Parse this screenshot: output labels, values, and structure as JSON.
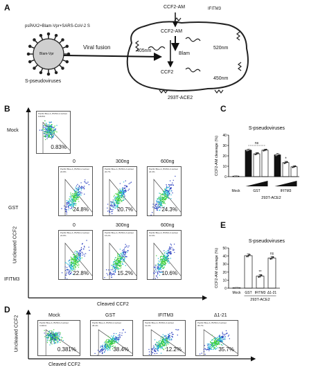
{
  "panels": {
    "a": "A",
    "b": "B",
    "c": "C",
    "d": "D",
    "e": "E"
  },
  "panelA": {
    "ccf2am_top": "CCF2-AM",
    "ccf2am_in": "CCF2-AM",
    "plasmid": "psPAX2+Blam-Vpr+SARS-CoV-2 S",
    "virus_inner": "Blam-Vpr",
    "virus_label": "S-pseudoviruses",
    "fusion": "Viral fusion",
    "ifitm3": "IFITM3",
    "nm405": "405nm",
    "blam": "Blam",
    "nm520": "520nm",
    "nm450": "450nm",
    "ccf2": "CCF2",
    "cell": "293T-ACE2"
  },
  "panelB": {
    "row_mock": "Mock",
    "row_gst": "GST",
    "row_ifitm3": "IFITM3",
    "doses": [
      "0",
      "300ng",
      "600ng"
    ],
    "yaxis": "Uncleaved CCF2",
    "xaxis": "Cleaved CCF2",
    "header_line1": "Pacific Blue-A, BV510-A subset",
    "mock_hdr2": "0.826%",
    "mock_pct": "0.83%",
    "gst": [
      {
        "hdr2": "24.8%",
        "pct": "24.8%"
      },
      {
        "hdr2": "20.7%",
        "pct": "20.7%"
      },
      {
        "hdr2": "24.3%",
        "pct": "24.3%"
      }
    ],
    "ifitm": [
      {
        "hdr2": "22.8%",
        "pct": "22.8%"
      },
      {
        "hdr2": "15.2%",
        "pct": "15.2%"
      },
      {
        "hdr2": "10.6%",
        "pct": "10.6%"
      }
    ]
  },
  "panelD": {
    "titles": [
      "Mock",
      "GST",
      "IFITM3",
      "Δ1-21"
    ],
    "hdr2": [
      "0.381%",
      "38.4%",
      "12.2%",
      "35.7%"
    ],
    "pcts": [
      "0.381%",
      "38.4%",
      "12.2%",
      "35.7%"
    ],
    "yaxis": "Uncleaved CCF2",
    "xaxis": "Cleaved CCF2"
  },
  "chart_data": [
    {
      "type": "bar",
      "panel": "C",
      "title": "S-pseudoviruses",
      "ylabel": "CCF2-AM cleavage (%)",
      "xlabel": "293T-ACE2",
      "ylim": [
        0,
        40
      ],
      "yticks": [
        "0",
        "10",
        "20",
        "30",
        "40"
      ],
      "groups": [
        "Mock",
        "GST",
        "IFITM3"
      ],
      "values": [
        0.5,
        25.5,
        22,
        25.5,
        21,
        13.5,
        9.5
      ],
      "errors": [
        0.3,
        1,
        1.2,
        1,
        1.2,
        1.2,
        1
      ],
      "fills": [
        "black",
        "black",
        "white",
        "white",
        "black",
        "white",
        "white"
      ],
      "annotations": [
        "ns",
        "*"
      ]
    },
    {
      "type": "bar",
      "panel": "E",
      "title": "S-pseudoviruses",
      "ylabel": "CCF2-AM cleavage (%)",
      "xlabel": "293T-ACE2",
      "ylim": [
        0,
        50
      ],
      "yticks": [
        "0",
        "10",
        "20",
        "30",
        "40",
        "50"
      ],
      "categories": [
        "Mock",
        "GST",
        "IFITM3",
        "Δ1-21"
      ],
      "values": [
        0.5,
        40.5,
        15,
        37.5
      ],
      "errors": [
        0.3,
        2,
        2,
        2
      ],
      "annotations": [
        "**",
        "ns"
      ]
    }
  ],
  "colors": {
    "axis": "#111111",
    "scatter_low": "#2b3fbf",
    "scatter_mid": "#23b8d8",
    "scatter_high": "#3fcf3a"
  }
}
